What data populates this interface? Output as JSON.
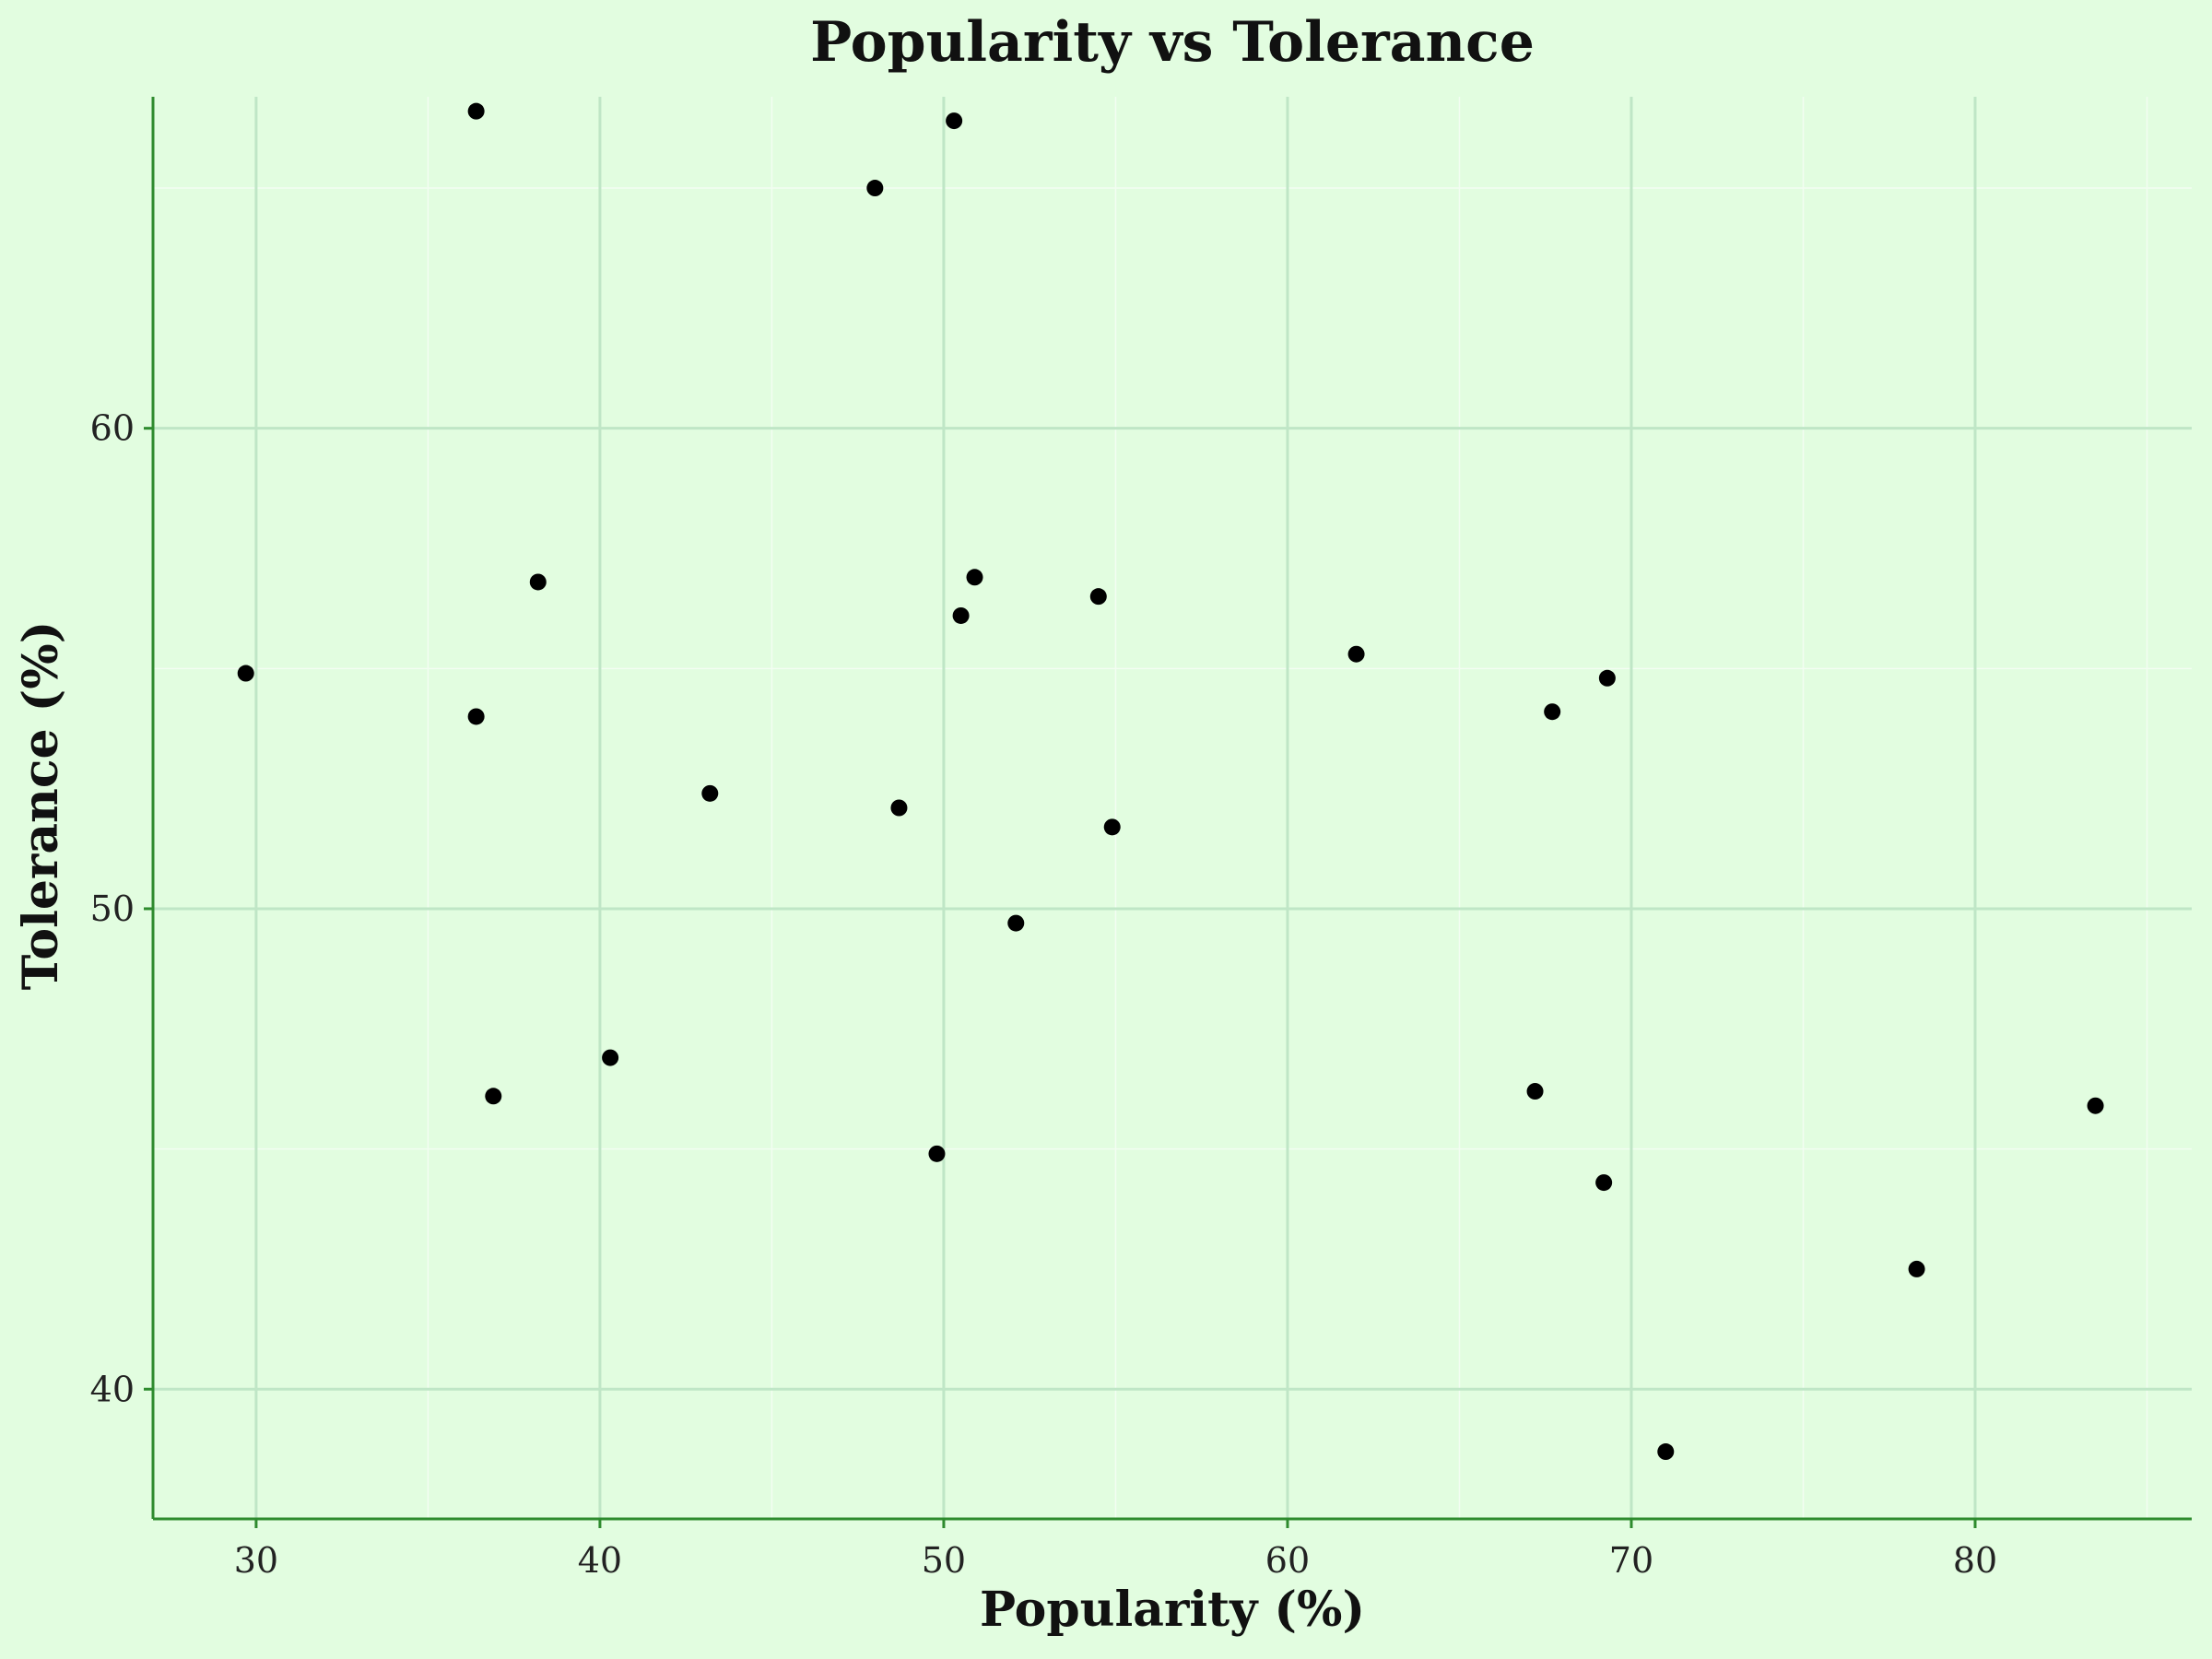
{
  "chart_data": {
    "type": "scatter",
    "title": "Popularity vs Tolerance",
    "xlabel": "Popularity (%)",
    "ylabel": "Tolerance (%)",
    "xlim": [
      27,
      86.3
    ],
    "ylim": [
      37.3,
      66.9
    ],
    "x_major_ticks": [
      30,
      40,
      50,
      60,
      70,
      80
    ],
    "x_minor_ticks": [
      35,
      45,
      55,
      65,
      75,
      85
    ],
    "y_major_ticks": [
      40,
      50,
      60
    ],
    "y_minor_ticks": [
      45,
      55,
      65
    ],
    "grid": true,
    "background": "#e2fde0",
    "point_color": "#000000",
    "axis_color": "#2e8b2e",
    "points": [
      {
        "x": 29.7,
        "y": 54.9
      },
      {
        "x": 36.4,
        "y": 66.6
      },
      {
        "x": 36.4,
        "y": 54.0
      },
      {
        "x": 36.9,
        "y": 46.1
      },
      {
        "x": 38.2,
        "y": 56.8
      },
      {
        "x": 40.3,
        "y": 46.9
      },
      {
        "x": 43.2,
        "y": 52.4
      },
      {
        "x": 48.0,
        "y": 65.0
      },
      {
        "x": 48.7,
        "y": 52.1
      },
      {
        "x": 49.8,
        "y": 44.9
      },
      {
        "x": 50.3,
        "y": 66.4
      },
      {
        "x": 50.5,
        "y": 56.1
      },
      {
        "x": 50.9,
        "y": 56.9
      },
      {
        "x": 52.1,
        "y": 49.7
      },
      {
        "x": 54.5,
        "y": 56.5
      },
      {
        "x": 54.9,
        "y": 51.7
      },
      {
        "x": 62.0,
        "y": 55.3
      },
      {
        "x": 67.2,
        "y": 46.2
      },
      {
        "x": 67.7,
        "y": 54.1
      },
      {
        "x": 69.2,
        "y": 44.3
      },
      {
        "x": 69.3,
        "y": 54.8
      },
      {
        "x": 71.0,
        "y": 38.7
      },
      {
        "x": 78.3,
        "y": 42.5
      },
      {
        "x": 83.5,
        "y": 45.9
      }
    ]
  }
}
